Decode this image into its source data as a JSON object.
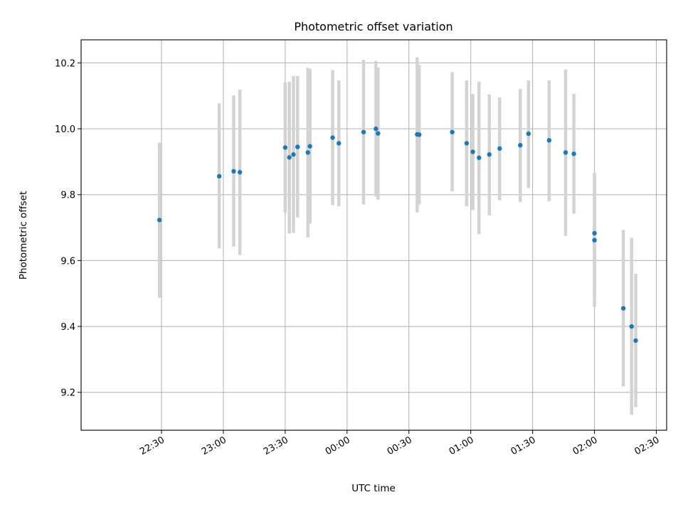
{
  "chart_data": {
    "type": "scatter",
    "title": "Photometric offset variation",
    "xlabel": "UTC time",
    "ylabel": "Photometric offset",
    "x_unit": "minutes after 22:00 UTC",
    "xlim_minutes": [
      -9,
      275
    ],
    "ylim": [
      9.085,
      10.27
    ],
    "grid": true,
    "xticks": [
      {
        "minutes": 30,
        "label": "22:30"
      },
      {
        "minutes": 60,
        "label": "23:00"
      },
      {
        "minutes": 90,
        "label": "23:30"
      },
      {
        "minutes": 120,
        "label": "00:00"
      },
      {
        "minutes": 150,
        "label": "00:30"
      },
      {
        "minutes": 180,
        "label": "01:00"
      },
      {
        "minutes": 210,
        "label": "01:30"
      },
      {
        "minutes": 240,
        "label": "02:00"
      },
      {
        "minutes": 270,
        "label": "02:30"
      }
    ],
    "yticks": [
      9.2,
      9.4,
      9.6,
      9.8,
      10.0,
      10.2
    ],
    "colors": {
      "point": "#1f77b4",
      "errorbar": "#d3d3d3",
      "grid": "#b0b0b0"
    },
    "points": [
      {
        "time": "22:29",
        "y": 9.723,
        "yerr_low": 9.487,
        "yerr_high": 9.958
      },
      {
        "time": "22:58",
        "y": 9.856,
        "yerr_low": 9.637,
        "yerr_high": 10.077
      },
      {
        "time": "23:05",
        "y": 9.871,
        "yerr_low": 9.642,
        "yerr_high": 10.101
      },
      {
        "time": "23:08",
        "y": 9.868,
        "yerr_low": 9.617,
        "yerr_high": 10.119
      },
      {
        "time": "23:30",
        "y": 9.943,
        "yerr_low": 9.745,
        "yerr_high": 10.141
      },
      {
        "time": "23:32",
        "y": 9.913,
        "yerr_low": 9.682,
        "yerr_high": 10.143
      },
      {
        "time": "23:34",
        "y": 9.922,
        "yerr_low": 9.684,
        "yerr_high": 10.16
      },
      {
        "time": "23:36",
        "y": 9.945,
        "yerr_low": 9.731,
        "yerr_high": 10.16
      },
      {
        "time": "23:41",
        "y": 9.928,
        "yerr_low": 9.67,
        "yerr_high": 10.185
      },
      {
        "time": "23:42",
        "y": 9.947,
        "yerr_low": 9.712,
        "yerr_high": 10.182
      },
      {
        "time": "23:53",
        "y": 9.973,
        "yerr_low": 9.768,
        "yerr_high": 10.178
      },
      {
        "time": "23:56",
        "y": 9.956,
        "yerr_low": 9.765,
        "yerr_high": 10.147
      },
      {
        "time": "00:08",
        "y": 9.99,
        "yerr_low": 9.77,
        "yerr_high": 10.209
      },
      {
        "time": "00:14",
        "y": 10.0,
        "yerr_low": 9.794,
        "yerr_high": 10.206
      },
      {
        "time": "00:15",
        "y": 9.986,
        "yerr_low": 9.785,
        "yerr_high": 10.186
      },
      {
        "time": "00:34",
        "y": 9.983,
        "yerr_low": 9.746,
        "yerr_high": 10.217
      },
      {
        "time": "00:35",
        "y": 9.982,
        "yerr_low": 9.77,
        "yerr_high": 10.194
      },
      {
        "time": "00:51",
        "y": 9.99,
        "yerr_low": 9.81,
        "yerr_high": 10.172
      },
      {
        "time": "00:58",
        "y": 9.956,
        "yerr_low": 9.765,
        "yerr_high": 10.147
      },
      {
        "time": "01:01",
        "y": 9.93,
        "yerr_low": 9.753,
        "yerr_high": 10.106
      },
      {
        "time": "01:04",
        "y": 9.912,
        "yerr_low": 9.68,
        "yerr_high": 10.143
      },
      {
        "time": "01:09",
        "y": 9.922,
        "yerr_low": 9.737,
        "yerr_high": 10.104
      },
      {
        "time": "01:14",
        "y": 9.94,
        "yerr_low": 9.783,
        "yerr_high": 10.095
      },
      {
        "time": "01:24",
        "y": 9.95,
        "yerr_low": 9.778,
        "yerr_high": 10.121
      },
      {
        "time": "01:28",
        "y": 9.985,
        "yerr_low": 9.82,
        "yerr_high": 10.147
      },
      {
        "time": "01:38",
        "y": 9.965,
        "yerr_low": 9.78,
        "yerr_high": 10.147
      },
      {
        "time": "01:46",
        "y": 9.928,
        "yerr_low": 9.675,
        "yerr_high": 10.18
      },
      {
        "time": "01:50",
        "y": 9.924,
        "yerr_low": 9.742,
        "yerr_high": 10.106
      },
      {
        "time": "02:00",
        "y": 9.662,
        "yerr_low": 9.46,
        "yerr_high": 9.862
      },
      {
        "time": "02:00",
        "y": 9.683,
        "yerr_low": 9.5,
        "yerr_high": 9.866
      },
      {
        "time": "02:14",
        "y": 9.455,
        "yerr_low": 9.218,
        "yerr_high": 9.693
      },
      {
        "time": "02:18",
        "y": 9.4,
        "yerr_low": 9.132,
        "yerr_high": 9.669
      },
      {
        "time": "02:20",
        "y": 9.357,
        "yerr_low": 9.155,
        "yerr_high": 9.56
      }
    ]
  }
}
